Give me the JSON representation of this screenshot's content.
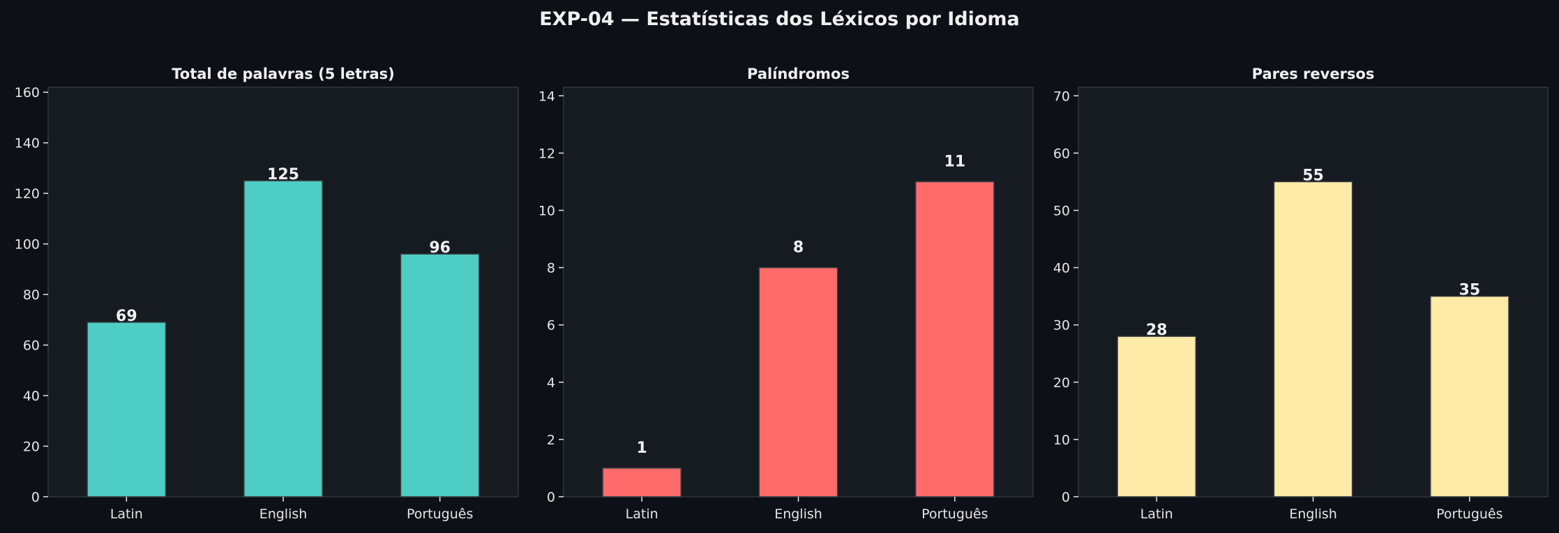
{
  "figure_title": "EXP-04 — Estatísticas dos Léxicos por Idioma",
  "colors": {
    "background": "#0d1117",
    "panel": "#161b22",
    "spine": "#30363d",
    "text": "#f0f0f0",
    "tick": "#e6e6e6"
  },
  "chart_data": [
    {
      "type": "bar",
      "title": "Total de palavras (5 letras)",
      "categories": [
        "Latin",
        "English",
        "Português"
      ],
      "values": [
        69,
        125,
        96
      ],
      "ylim": [
        0,
        162
      ],
      "yticks": [
        "0",
        "20",
        "40",
        "60",
        "80",
        "100",
        "120",
        "140",
        "160"
      ],
      "color": "#4ecdc4",
      "data_labels": [
        "69",
        "125",
        "96"
      ]
    },
    {
      "type": "bar",
      "title": "Palíndromos",
      "categories": [
        "Latin",
        "English",
        "Português"
      ],
      "values": [
        1,
        8,
        11
      ],
      "ylim": [
        0,
        14.3
      ],
      "yticks": [
        "0",
        "2",
        "4",
        "6",
        "8",
        "10",
        "12",
        "14"
      ],
      "color": "#ff6b6b",
      "data_labels": [
        "1",
        "8",
        "11"
      ]
    },
    {
      "type": "bar",
      "title": "Pares reversos",
      "categories": [
        "Latin",
        "English",
        "Português"
      ],
      "values": [
        28,
        55,
        35
      ],
      "ylim": [
        0,
        71.5
      ],
      "yticks": [
        "0",
        "10",
        "20",
        "30",
        "40",
        "50",
        "60",
        "70"
      ],
      "color": "#ffeaa7",
      "data_labels": [
        "28",
        "55",
        "35"
      ]
    }
  ]
}
